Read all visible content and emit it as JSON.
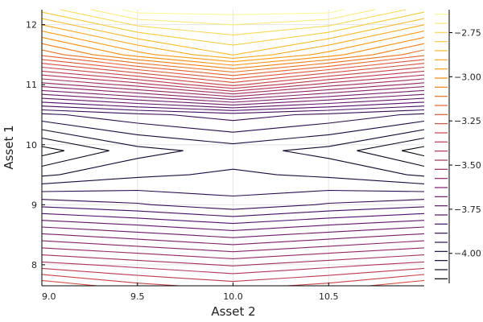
{
  "chart_data": {
    "type": "contour",
    "xlabel": "Asset 2",
    "ylabel": "Asset 1",
    "xlim": [
      9.0,
      11.0
    ],
    "ylim": [
      7.65,
      12.25
    ],
    "x_ticks": [
      9.0,
      9.5,
      10.0,
      10.5
    ],
    "x_tick_labels": [
      "9.0",
      "9.5",
      "10.0",
      "10.5"
    ],
    "y_ticks": [
      8,
      9,
      10,
      11,
      12
    ],
    "y_tick_labels": [
      "8",
      "9",
      "10",
      "11",
      "12"
    ],
    "grid": true,
    "colorbar": {
      "range": [
        -4.17,
        -2.62
      ],
      "ticks": [
        -2.75,
        -3.0,
        -3.25,
        -3.5,
        -3.75,
        -4.0
      ],
      "tick_labels": [
        "−2.75",
        "−3.00",
        "−3.25",
        "−3.50",
        "−3.75",
        "−4.00"
      ],
      "colormap": "inferno",
      "level_count": 30
    },
    "contour_grid": {
      "x": [
        9.0,
        9.5,
        10.0,
        10.5,
        11.0
      ],
      "y": [
        7.65,
        8.0,
        8.5,
        9.0,
        9.5,
        9.9,
        10.5,
        11.0,
        11.5,
        12.25
      ],
      "z": [
        [
          -3.22,
          -3.3,
          -3.34,
          -3.3,
          -3.22
        ],
        [
          -3.4,
          -3.44,
          -3.48,
          -3.44,
          -3.4
        ],
        [
          -3.62,
          -3.66,
          -3.7,
          -3.66,
          -3.62
        ],
        [
          -3.85,
          -3.88,
          -3.92,
          -3.88,
          -3.85
        ],
        [
          -4.05,
          -4.0,
          -3.98,
          -4.0,
          -4.05
        ],
        [
          -4.17,
          -4.06,
          -4.02,
          -4.06,
          -4.17
        ],
        [
          -3.95,
          -3.9,
          -3.86,
          -3.9,
          -3.95
        ],
        [
          -3.55,
          -3.45,
          -3.3,
          -3.45,
          -3.55
        ],
        [
          -3.15,
          -2.98,
          -2.85,
          -2.98,
          -3.15
        ],
        [
          -2.78,
          -2.62,
          -2.62,
          -2.62,
          -2.78
        ]
      ]
    }
  }
}
